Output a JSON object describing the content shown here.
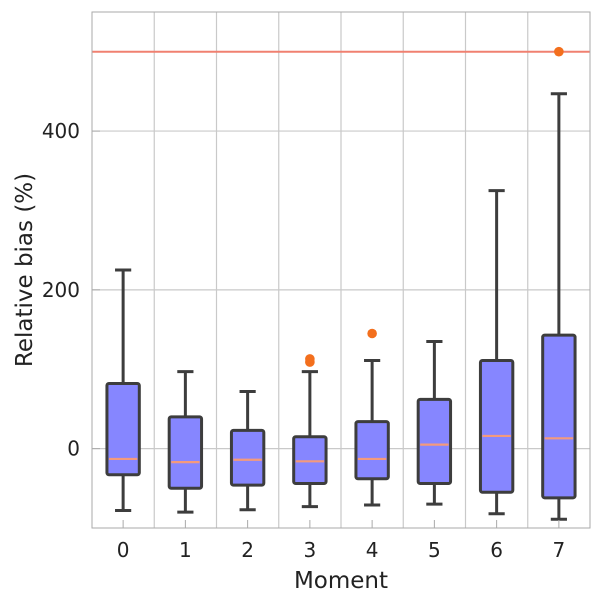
{
  "chart_data": {
    "type": "box",
    "title": "",
    "xlabel": "Moment",
    "ylabel": "Relative bias (%)",
    "categories": [
      "0",
      "1",
      "2",
      "3",
      "4",
      "5",
      "6",
      "7"
    ],
    "yticks": [
      0,
      200,
      400
    ],
    "ytick_labels": [
      "0",
      "200",
      "400"
    ],
    "ylim": [
      -100,
      550
    ],
    "grid": true,
    "reference_line": {
      "y": 500,
      "color": "#f08070"
    },
    "boxes": [
      {
        "category": "0",
        "whisker_low": -78,
        "q1": -33,
        "median": -13,
        "q3": 82,
        "whisker_high": 225,
        "outliers": []
      },
      {
        "category": "1",
        "whisker_low": -80,
        "q1": -50,
        "median": -17,
        "q3": 40,
        "whisker_high": 97,
        "outliers": []
      },
      {
        "category": "2",
        "whisker_low": -77,
        "q1": -46,
        "median": -14,
        "q3": 23,
        "whisker_high": 72,
        "outliers": []
      },
      {
        "category": "3",
        "whisker_low": -73,
        "q1": -44,
        "median": -16,
        "q3": 15,
        "whisker_high": 97,
        "outliers": [
          109,
          113
        ]
      },
      {
        "category": "4",
        "whisker_low": -71,
        "q1": -38,
        "median": -13,
        "q3": 34,
        "whisker_high": 111,
        "outliers": [
          145
        ]
      },
      {
        "category": "5",
        "whisker_low": -70,
        "q1": -44,
        "median": 5,
        "q3": 62,
        "whisker_high": 135,
        "outliers": []
      },
      {
        "category": "6",
        "whisker_low": -82,
        "q1": -55,
        "median": 16,
        "q3": 111,
        "whisker_high": 325,
        "outliers": []
      },
      {
        "category": "7",
        "whisker_low": -89,
        "q1": -62,
        "median": 13,
        "q3": 143,
        "whisker_high": 447,
        "outliers": [
          500
        ]
      }
    ],
    "colors": {
      "box_fill": "#8686ff",
      "box_edge": "#3d3d3d",
      "median": "#f49a7c",
      "outlier": "#f36f1d",
      "grid": "#c9c9c9",
      "reference_line": "#f08070"
    }
  }
}
